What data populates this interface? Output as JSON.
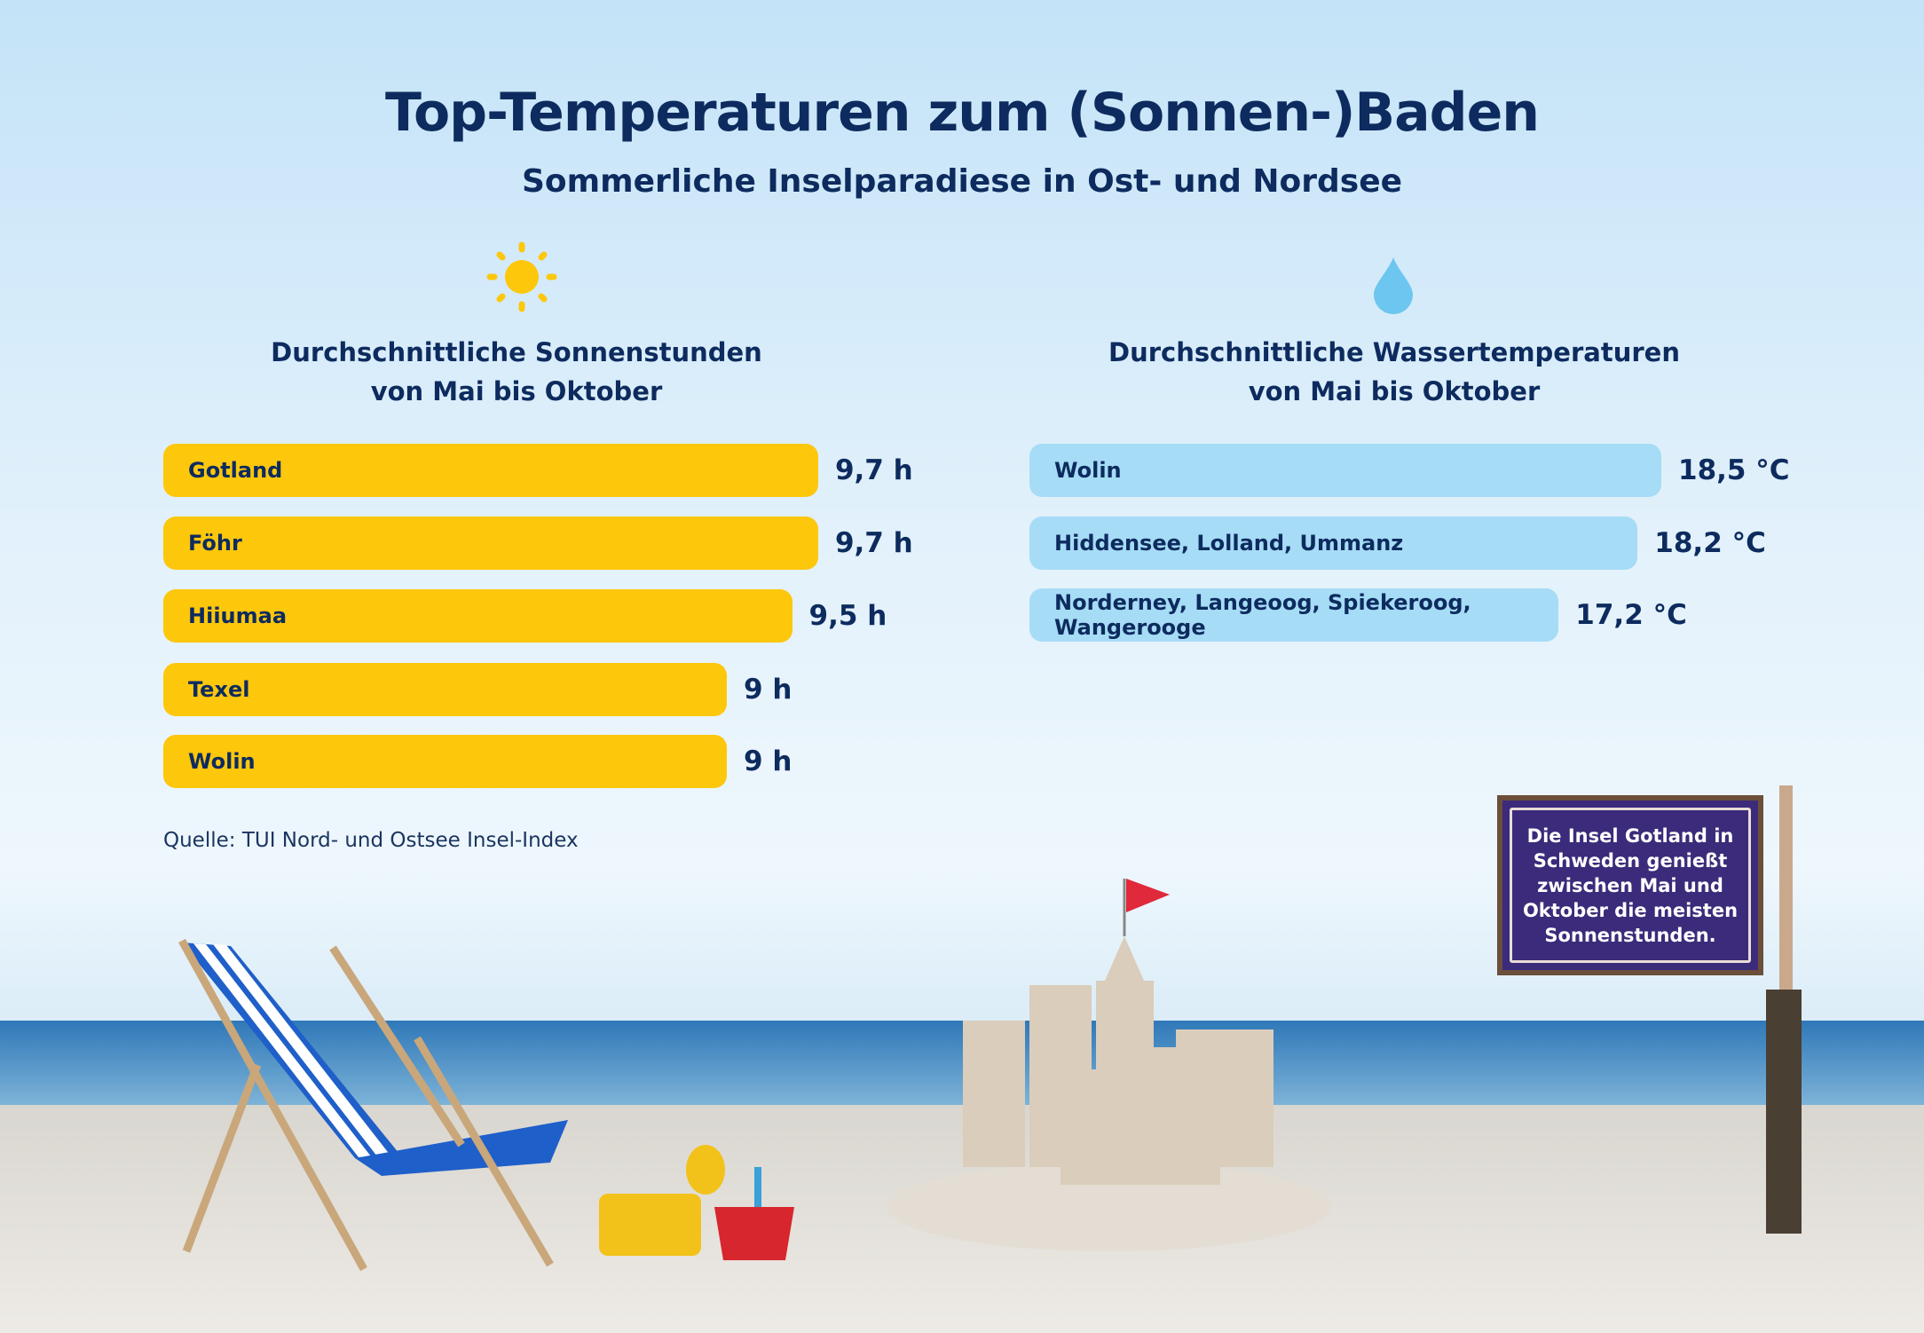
{
  "title": "Top-Temperaturen zum (Sonnen-)Baden",
  "subtitle": "Sommerliche Inselparadiese in Ost- und Nordsee",
  "source": "Quelle: TUI Nord- und Ostsee Insel-Index",
  "sign_text": "Die Insel Gotland in Schweden genießt zwischen Mai und Oktober die meisten Sonnenstunden.",
  "colors": {
    "sun": "#fdc70c",
    "water": "#a6dcf6",
    "text": "#0d2b5e",
    "sign": "#3b2b7a"
  },
  "chart_data": [
    {
      "type": "bar",
      "orientation": "horizontal",
      "icon": "sun-icon",
      "title_line1": "Durchschnittliche Sonnenstunden",
      "title_line2": "von Mai bis Oktober",
      "unit": "h",
      "categories": [
        "Gotland",
        "Föhr",
        "Hiiumaa",
        "Texel",
        "Wolin"
      ],
      "values": [
        9.7,
        9.7,
        9.5,
        9,
        9
      ],
      "labels": [
        "9,7 h",
        "9,7 h",
        "9,5 h",
        "9 h",
        "9 h"
      ],
      "color": "#fdc70c"
    },
    {
      "type": "bar",
      "orientation": "horizontal",
      "icon": "water-drop-icon",
      "title_line1": "Durchschnittliche Wassertemperaturen",
      "title_line2": "von Mai bis Oktober",
      "unit": "°C",
      "categories": [
        "Wolin",
        "Hiddensee, Lolland, Ummanz",
        "Norderney, Langeoog, Spiekeroog, Wangerooge"
      ],
      "values": [
        18.5,
        18.2,
        17.2
      ],
      "labels": [
        "18,5 °C",
        "18,2 °C",
        "17,2 °C"
      ],
      "color": "#a6dcf6"
    }
  ]
}
